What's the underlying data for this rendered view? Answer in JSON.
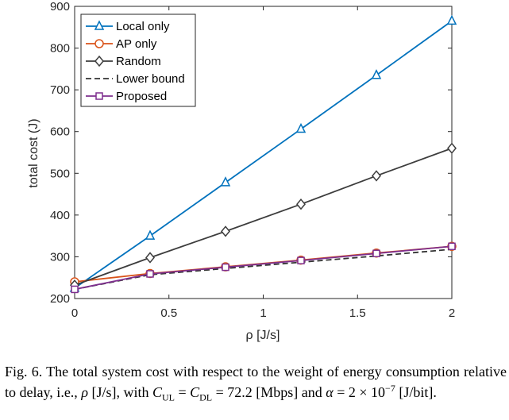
{
  "chart_data": {
    "type": "line",
    "x": [
      0,
      0.4,
      0.8,
      1.2,
      1.6,
      2.0
    ],
    "xlim": [
      0,
      2
    ],
    "ylim": [
      200,
      900
    ],
    "xticks": [
      0,
      0.5,
      1,
      1.5,
      2
    ],
    "xtick_labels": [
      "0",
      "0.5",
      "1",
      "1.5",
      "2"
    ],
    "yticks": [
      200,
      300,
      400,
      500,
      600,
      700,
      800,
      900
    ],
    "ytick_labels": [
      "200",
      "300",
      "400",
      "500",
      "600",
      "700",
      "800",
      "900"
    ],
    "xlabel": "ρ [J/s]",
    "ylabel": "total cost (J)",
    "grid": false,
    "legend_position": "top-left",
    "series": [
      {
        "name": "Local only",
        "color": "#0072BD",
        "marker": "triangle",
        "dash": "solid",
        "values": [
          225,
          350,
          478,
          606,
          735,
          865
        ]
      },
      {
        "name": "AP only",
        "color": "#D95319",
        "marker": "circle",
        "dash": "solid",
        "values": [
          240,
          260,
          276,
          292,
          309,
          325
        ]
      },
      {
        "name": "Random",
        "color": "#3d3d3d",
        "marker": "diamond",
        "dash": "solid",
        "values": [
          232,
          298,
          361,
          426,
          494,
          560
        ]
      },
      {
        "name": "Lower bound",
        "color": "#333333",
        "marker": "none",
        "dash": "dashed",
        "values": [
          222,
          257,
          272,
          287,
          302,
          318
        ]
      },
      {
        "name": "Proposed",
        "color": "#7E2F8E",
        "marker": "square",
        "dash": "solid",
        "values": [
          222,
          259,
          275,
          291,
          308,
          325
        ]
      }
    ]
  },
  "caption": {
    "text": "Fig. 6. The total system cost with respect to the weight of energy consumption relative to delay, i.e., ρ [J/s], with C_UL = C_DL = 72.2 [Mbps] and α = 2 × 10⁻⁷ [J/bit]."
  }
}
